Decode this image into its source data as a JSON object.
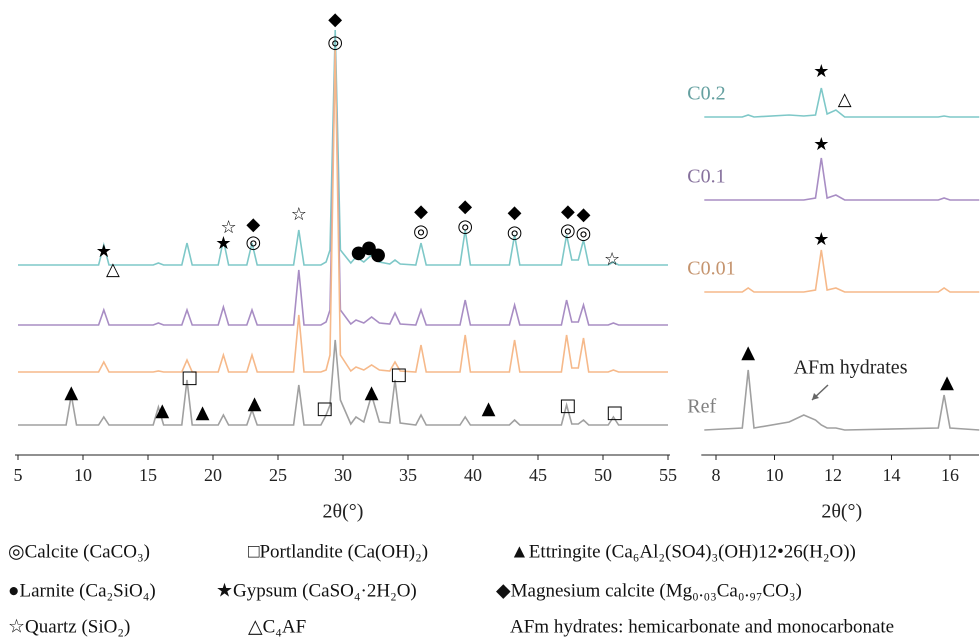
{
  "chart_data": [
    {
      "type": "line",
      "x_label": "2θ(°)",
      "xlim": [
        5,
        55
      ],
      "xticks": [
        5,
        10,
        15,
        20,
        25,
        30,
        35,
        40,
        45,
        50,
        55
      ],
      "ylim": [
        0,
        450
      ],
      "x": [
        5,
        8.7,
        9.1,
        9.5,
        11.2,
        11.6,
        12.0,
        15.4,
        15.8,
        16.2,
        17.6,
        18.0,
        18.4,
        20.4,
        20.8,
        21.2,
        22.6,
        23.0,
        23.4,
        26.2,
        26.6,
        27.0,
        28.3,
        28.7,
        29.0,
        29.4,
        29.8,
        30.6,
        31.0,
        31.6,
        32.2,
        32.8,
        33.6,
        34.0,
        34.4,
        35.6,
        36.0,
        36.4,
        39.0,
        39.4,
        39.8,
        42.8,
        43.2,
        43.6,
        46.8,
        47.2,
        47.6,
        48.1,
        48.5,
        48.9,
        50.4,
        50.8,
        51.2,
        55
      ],
      "series": [
        {
          "color": "#7ec8c8",
          "values": [
            185,
            185,
            185,
            185,
            185,
            205,
            185,
            185,
            187,
            185,
            185,
            207,
            185,
            185,
            210,
            185,
            185,
            207,
            185,
            185,
            220,
            185,
            185,
            188,
            200,
            420,
            200,
            187,
            193,
            188,
            195,
            188,
            186,
            190,
            186,
            185,
            207,
            185,
            185,
            220,
            185,
            185,
            215,
            185,
            185,
            215,
            190,
            190,
            210,
            185,
            185,
            188,
            185,
            185
          ]
        },
        {
          "color": "#a88dc4",
          "values": [
            125,
            125,
            125,
            125,
            125,
            140,
            125,
            125,
            127,
            125,
            125,
            140,
            125,
            125,
            143,
            125,
            125,
            140,
            125,
            125,
            180,
            125,
            125,
            128,
            140,
            400,
            140,
            126,
            130,
            127,
            133,
            127,
            126,
            137,
            126,
            125,
            140,
            125,
            125,
            150,
            125,
            125,
            145,
            125,
            125,
            150,
            128,
            128,
            145,
            125,
            125,
            127,
            125,
            125
          ]
        },
        {
          "color": "#f6b98a",
          "values": [
            78,
            78,
            78,
            78,
            78,
            88,
            78,
            78,
            79,
            78,
            78,
            90,
            78,
            78,
            95,
            78,
            78,
            95,
            78,
            78,
            135,
            78,
            78,
            80,
            95,
            400,
            95,
            79,
            83,
            80,
            85,
            80,
            79,
            88,
            79,
            78,
            105,
            78,
            78,
            115,
            78,
            78,
            110,
            78,
            78,
            115,
            82,
            82,
            112,
            78,
            78,
            80,
            78,
            78
          ]
        },
        {
          "color": "#a0a0a0",
          "values": [
            25,
            25,
            55,
            25,
            25,
            33,
            25,
            25,
            43,
            25,
            25,
            70,
            25,
            25,
            35,
            25,
            25,
            40,
            25,
            25,
            65,
            25,
            25,
            35,
            45,
            110,
            50,
            26,
            33,
            28,
            55,
            28,
            27,
            70,
            27,
            25,
            35,
            25,
            25,
            33,
            25,
            25,
            30,
            25,
            25,
            45,
            26,
            26,
            30,
            25,
            25,
            33,
            25,
            25
          ]
        }
      ],
      "annotations": [
        {
          "text": "◆",
          "x": 29.4,
          "y": 430
        },
        {
          "text": "◎",
          "x": 29.4,
          "y": 407
        },
        {
          "text": "★",
          "x": 11.6,
          "y": 198
        },
        {
          "text": "△",
          "x": 12.3,
          "y": 180
        },
        {
          "text": "★",
          "x": 20.8,
          "y": 206
        },
        {
          "text": "☆",
          "x": 21.2,
          "y": 222
        },
        {
          "text": "◆",
          "x": 23.1,
          "y": 225
        },
        {
          "text": "◎",
          "x": 23.1,
          "y": 207
        },
        {
          "text": "☆",
          "x": 26.6,
          "y": 235
        },
        {
          "text": "●",
          "x": 31.2,
          "y": 197
        },
        {
          "text": "●",
          "x": 32.0,
          "y": 202
        },
        {
          "text": "●",
          "x": 32.7,
          "y": 195
        },
        {
          "text": "◆",
          "x": 36,
          "y": 238
        },
        {
          "text": "◎",
          "x": 36,
          "y": 218
        },
        {
          "text": "◆",
          "x": 39.4,
          "y": 243
        },
        {
          "text": "◎",
          "x": 39.4,
          "y": 223
        },
        {
          "text": "◆",
          "x": 43.2,
          "y": 237
        },
        {
          "text": "◎",
          "x": 43.2,
          "y": 217
        },
        {
          "text": "◆",
          "x": 47.3,
          "y": 238
        },
        {
          "text": "◆",
          "x": 48.5,
          "y": 235
        },
        {
          "text": "◎",
          "x": 47.3,
          "y": 219
        },
        {
          "text": "◎",
          "x": 48.5,
          "y": 216
        },
        {
          "text": "☆",
          "x": 50.7,
          "y": 190
        },
        {
          "text": "▲",
          "x": 9.1,
          "y": 57
        },
        {
          "text": "▲",
          "x": 16.1,
          "y": 39
        },
        {
          "text": "□",
          "x": 18.2,
          "y": 72
        },
        {
          "text": "▲",
          "x": 19.2,
          "y": 37
        },
        {
          "text": "▲",
          "x": 23.2,
          "y": 46
        },
        {
          "text": "□",
          "x": 28.6,
          "y": 41
        },
        {
          "text": "▲",
          "x": 32.2,
          "y": 57
        },
        {
          "text": "□",
          "x": 34.3,
          "y": 75
        },
        {
          "text": "▲",
          "x": 41.2,
          "y": 41
        },
        {
          "text": "□",
          "x": 47.3,
          "y": 44
        },
        {
          "text": "□",
          "x": 50.9,
          "y": 37
        }
      ]
    },
    {
      "type": "line",
      "x_label": "2θ(°)",
      "xlim": [
        7.6,
        17
      ],
      "xticks": [
        8,
        10,
        12,
        14,
        16
      ],
      "ylim": [
        0,
        450
      ],
      "x": [
        7.6,
        8.9,
        9.1,
        9.3,
        10.5,
        11.0,
        11.4,
        11.6,
        11.8,
        12.1,
        12.4,
        15.6,
        15.8,
        16.0,
        17
      ],
      "series": [
        {
          "name": "C0.2",
          "color": "#7ec8c8",
          "values": [
            333,
            333,
            335,
            333,
            335,
            334,
            335,
            362,
            336,
            340,
            333,
            333,
            334,
            333,
            333
          ]
        },
        {
          "name": "C0.1",
          "color": "#a88dc4",
          "values": [
            250,
            250,
            250,
            250,
            250,
            250,
            252,
            292,
            252,
            255,
            250,
            250,
            252,
            250,
            250
          ]
        },
        {
          "name": "C0.01",
          "color": "#f6b98a",
          "values": [
            158,
            158,
            162,
            158,
            158,
            158,
            160,
            200,
            160,
            162,
            158,
            158,
            162,
            158,
            158
          ]
        },
        {
          "name": "Ref",
          "color": "#a0a0a0",
          "values": [
            20,
            22,
            80,
            22,
            28,
            35,
            30,
            25,
            22,
            22,
            20,
            22,
            55,
            22,
            20
          ]
        }
      ],
      "annotations": [
        {
          "text": "★",
          "x": 11.6,
          "y": 378
        },
        {
          "text": "△",
          "x": 12.4,
          "y": 350
        },
        {
          "text": "★",
          "x": 11.6,
          "y": 305
        },
        {
          "text": "★",
          "x": 11.6,
          "y": 210
        },
        {
          "text": "▲",
          "x": 9.1,
          "y": 97
        },
        {
          "text": "▲",
          "x": 15.9,
          "y": 67
        },
        {
          "text": "AFm hydrates",
          "x": 12.6,
          "y": 81,
          "color": "#888888"
        }
      ]
    }
  ],
  "legend_notes": [
    [
      "◎Calcite (CaCO₃)",
      "□Portlandite (Ca(OH)₂)",
      "▲Ettringite (Ca₆Al₂(SO4)₃(OH)12•26(H₂O))"
    ],
    [
      "●Larnite (Ca₂SiO₄)",
      "★Gypsum (CaSO₄·2H₂O)",
      "◆Magnesium calcite (Mg₀.₀₃Ca₀.₉₇CO₃)"
    ],
    [
      "☆Quartz (SiO₂)",
      "△C₄AF",
      "AFm hydrates: hemicarbonate and monocarbonate"
    ]
  ]
}
